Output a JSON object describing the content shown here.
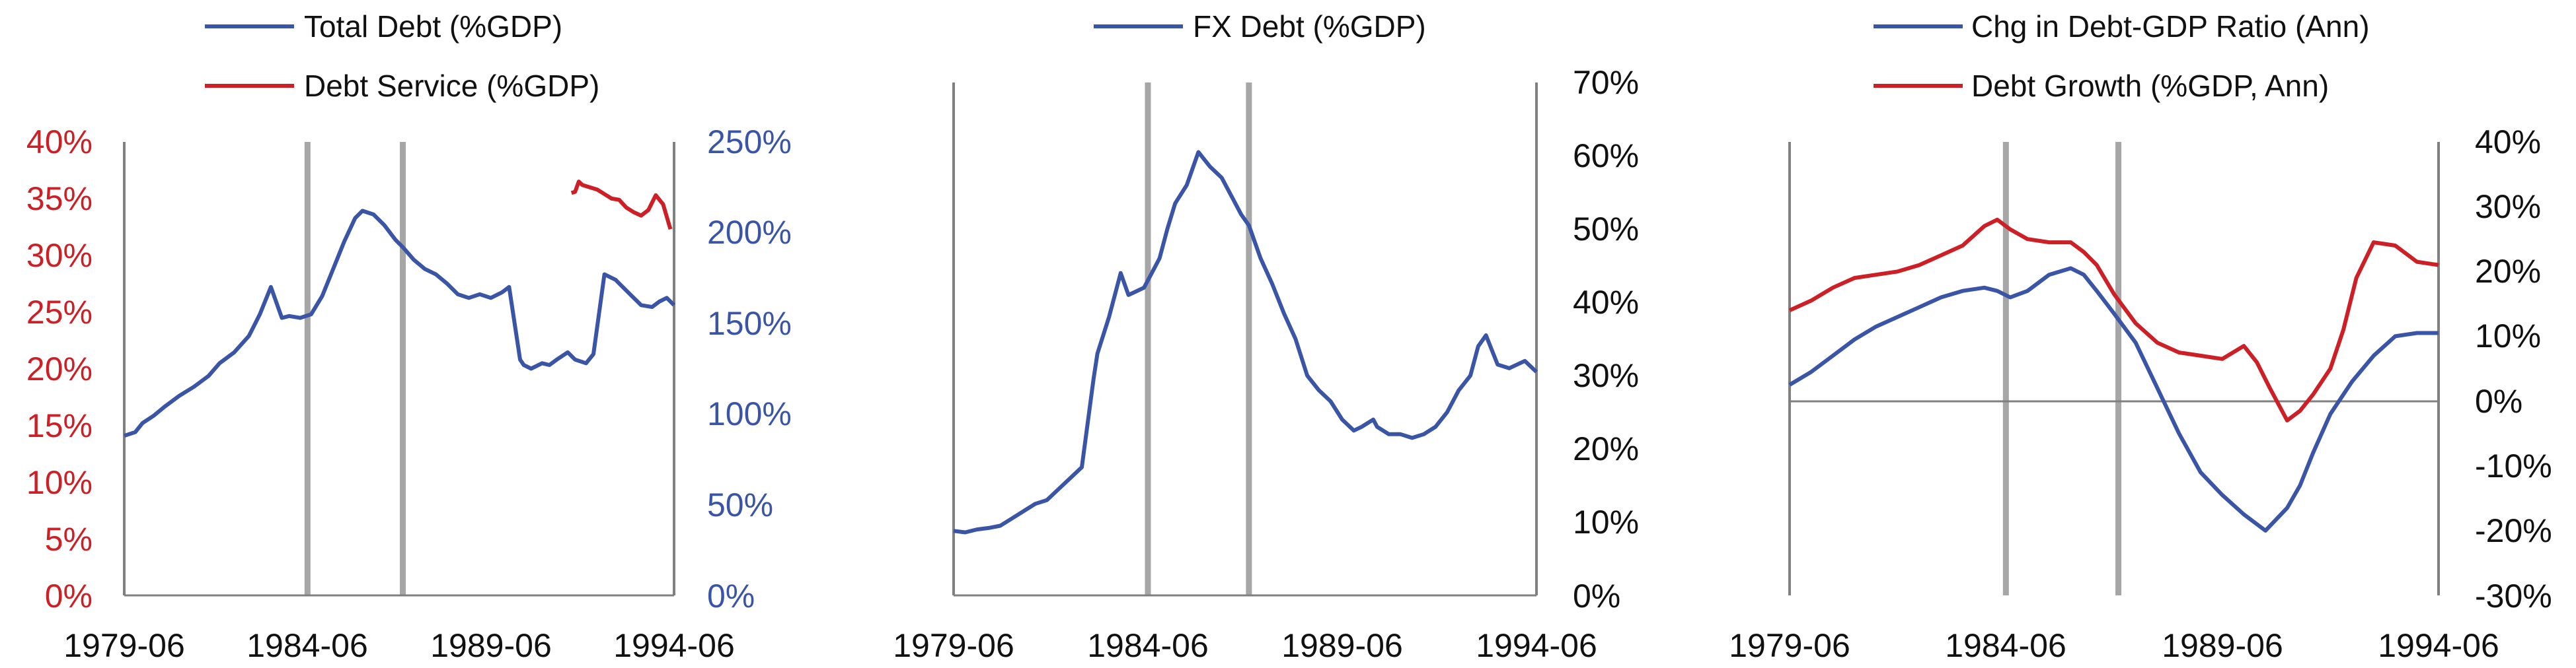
{
  "colors": {
    "blue": "#3b55a6",
    "red": "#cc2026",
    "recession": "#a6a6a6",
    "axis": "#808080"
  },
  "charts": [
    {
      "legend": [
        "Total Debt (%GDP)",
        "Debt Service (%GDP)"
      ],
      "x_ticks": [
        "1979-06",
        "1984-06",
        "1989-06",
        "1994-06"
      ],
      "left_ticks": [
        "40%",
        "35%",
        "30%",
        "25%",
        "20%",
        "15%",
        "10%",
        "5%",
        "0%"
      ],
      "right_ticks": [
        "250%",
        "200%",
        "150%",
        "100%",
        "50%",
        "0%"
      ]
    },
    {
      "legend": [
        "FX Debt (%GDP)"
      ],
      "x_ticks": [
        "1979-06",
        "1984-06",
        "1989-06",
        "1994-06"
      ],
      "right_ticks": [
        "70%",
        "60%",
        "50%",
        "40%",
        "30%",
        "20%",
        "10%",
        "0%"
      ]
    },
    {
      "legend": [
        "Chg in Debt-GDP Ratio (Ann)",
        "Debt Growth (%GDP, Ann)"
      ],
      "x_ticks": [
        "1979-06",
        "1984-06",
        "1989-06",
        "1994-06"
      ],
      "right_ticks": [
        "40%",
        "30%",
        "20%",
        "10%",
        "0%",
        "-10%",
        "-20%",
        "-30%"
      ]
    }
  ],
  "chart_data": [
    {
      "type": "line",
      "title": "",
      "x_range": [
        1979.5,
        1994.5
      ],
      "recession_bands": [
        1984.5,
        1987.1
      ],
      "y_left": {
        "range": [
          0,
          40
        ],
        "unit": "%"
      },
      "y_right": {
        "range": [
          0,
          250
        ],
        "unit": "%"
      },
      "series": [
        {
          "name": "Total Debt (%GDP)",
          "axis": "right",
          "color": "blue",
          "x": [
            1979.5,
            1979.8,
            1980.0,
            1980.3,
            1980.6,
            1981.0,
            1981.4,
            1981.8,
            1982.1,
            1982.5,
            1982.9,
            1983.2,
            1983.5,
            1983.8,
            1984.0,
            1984.3,
            1984.6,
            1984.9,
            1985.2,
            1985.5,
            1985.8,
            1986.0,
            1986.3,
            1986.6,
            1986.9,
            1987.1,
            1987.4,
            1987.7,
            1988.0,
            1988.3,
            1988.6,
            1988.9,
            1989.2,
            1989.5,
            1989.8,
            1990.0,
            1990.3,
            1990.4,
            1990.6,
            1990.9,
            1991.1,
            1991.3,
            1991.6,
            1991.8,
            1992.1,
            1992.3,
            1992.6,
            1992.9,
            1993.1,
            1993.3,
            1993.6,
            1993.9,
            1994.1,
            1994.3,
            1994.5
          ],
          "y": [
            88,
            90,
            95,
            99,
            104,
            110,
            115,
            121,
            128,
            134,
            143,
            155,
            170,
            153,
            154,
            153,
            155,
            165,
            180,
            195,
            208,
            212,
            210,
            204,
            196,
            192,
            185,
            180,
            177,
            172,
            166,
            164,
            166,
            164,
            167,
            170,
            130,
            127,
            125,
            128,
            127,
            130,
            134,
            130,
            128,
            133,
            177,
            174,
            170,
            166,
            160,
            159,
            162,
            164,
            160
          ]
        },
        {
          "name": "Debt Service (%GDP)",
          "axis": "left",
          "color": "red",
          "x": [
            1991.7,
            1991.8,
            1991.9,
            1992.0,
            1992.2,
            1992.4,
            1992.6,
            1992.8,
            1993.0,
            1993.2,
            1993.4,
            1993.6,
            1993.8,
            1994.0,
            1994.2,
            1994.4
          ],
          "y": [
            35.5,
            35.6,
            36.5,
            36.2,
            36.0,
            35.8,
            35.4,
            35.0,
            34.9,
            34.2,
            33.8,
            33.5,
            34.0,
            35.3,
            34.5,
            32.3
          ]
        }
      ]
    },
    {
      "type": "line",
      "title": "",
      "x_range": [
        1979.5,
        1994.5
      ],
      "recession_bands": [
        1984.5,
        1987.1
      ],
      "y_right": {
        "range": [
          0,
          70
        ],
        "unit": "%"
      },
      "series": [
        {
          "name": "FX Debt (%GDP)",
          "axis": "right",
          "color": "blue",
          "x": [
            1979.5,
            1979.8,
            1980.1,
            1980.4,
            1980.7,
            1981.0,
            1981.3,
            1981.6,
            1981.9,
            1982.2,
            1982.5,
            1982.8,
            1983.1,
            1983.2,
            1983.5,
            1983.8,
            1984.0,
            1984.2,
            1984.4,
            1984.6,
            1984.8,
            1985.0,
            1985.2,
            1985.5,
            1985.8,
            1986.1,
            1986.4,
            1986.7,
            1986.9,
            1987.1,
            1987.4,
            1987.7,
            1988.0,
            1988.3,
            1988.6,
            1988.9,
            1989.2,
            1989.5,
            1989.8,
            1990.0,
            1990.3,
            1990.4,
            1990.7,
            1991.0,
            1991.3,
            1991.6,
            1991.9,
            1992.2,
            1992.5,
            1992.8,
            1993.0,
            1993.2,
            1993.5,
            1993.8,
            1994.0,
            1994.2,
            1994.4,
            1994.5
          ],
          "y": [
            8.8,
            8.6,
            9.0,
            9.2,
            9.5,
            10.5,
            11.5,
            12.5,
            13.0,
            14.5,
            16.0,
            17.5,
            29.5,
            33.0,
            38.0,
            44.0,
            41.0,
            41.5,
            42.0,
            44.0,
            46.0,
            50.0,
            53.5,
            56.0,
            60.5,
            58.5,
            57.0,
            54.0,
            52.0,
            50.5,
            46.0,
            42.5,
            38.5,
            35.0,
            30.0,
            28.0,
            26.5,
            24.0,
            22.5,
            23.0,
            24.0,
            23.0,
            22.0,
            22.0,
            21.5,
            22.0,
            23.0,
            25.0,
            28.0,
            30.0,
            34.0,
            35.5,
            31.5,
            31.0,
            31.5,
            32.0,
            31.0,
            30.5
          ]
        }
      ]
    },
    {
      "type": "line",
      "title": "",
      "x_range": [
        1979.5,
        1994.5
      ],
      "recession_bands": [
        1984.5,
        1987.1
      ],
      "y_right": {
        "range": [
          -30,
          40
        ],
        "unit": "%"
      },
      "series": [
        {
          "name": "Chg in Debt-GDP Ratio (Ann)",
          "axis": "right",
          "color": "blue",
          "x": [
            1979.5,
            1980.0,
            1980.5,
            1981.0,
            1981.5,
            1982.0,
            1982.5,
            1983.0,
            1983.5,
            1984.0,
            1984.3,
            1984.6,
            1985.0,
            1985.5,
            1986.0,
            1986.3,
            1986.6,
            1987.0,
            1987.5,
            1988.0,
            1988.5,
            1989.0,
            1989.5,
            1990.0,
            1990.5,
            1991.0,
            1991.3,
            1991.6,
            1992.0,
            1992.5,
            1993.0,
            1993.5,
            1994.0,
            1994.5
          ],
          "y": [
            2.5,
            4.5,
            7.0,
            9.5,
            11.5,
            13.0,
            14.5,
            16.0,
            17.0,
            17.5,
            17.0,
            16.0,
            17.0,
            19.5,
            20.5,
            19.5,
            17.0,
            13.5,
            9.0,
            2.0,
            -5.0,
            -11.0,
            -14.5,
            -17.5,
            -20.0,
            -16.5,
            -13.0,
            -8.0,
            -2.0,
            3.0,
            7.0,
            10.0,
            10.5,
            10.5
          ]
        },
        {
          "name": "Debt Growth (%GDP, Ann)",
          "axis": "right",
          "color": "red",
          "x": [
            1979.5,
            1980.0,
            1980.5,
            1981.0,
            1981.5,
            1982.0,
            1982.5,
            1983.0,
            1983.5,
            1984.0,
            1984.3,
            1984.6,
            1985.0,
            1985.5,
            1986.0,
            1986.3,
            1986.6,
            1987.0,
            1987.5,
            1988.0,
            1988.5,
            1989.0,
            1989.5,
            1990.0,
            1990.3,
            1990.6,
            1991.0,
            1991.3,
            1991.6,
            1992.0,
            1992.3,
            1992.6,
            1993.0,
            1993.5,
            1994.0,
            1994.5
          ],
          "y": [
            14.0,
            15.5,
            17.5,
            19.0,
            19.5,
            20.0,
            21.0,
            22.5,
            24.0,
            27.0,
            28.0,
            26.5,
            25.0,
            24.5,
            24.5,
            23.0,
            21.0,
            16.5,
            12.0,
            9.0,
            7.5,
            7.0,
            6.5,
            8.5,
            6.0,
            2.0,
            -3.0,
            -1.5,
            1.0,
            5.0,
            11.0,
            19.0,
            24.5,
            24.0,
            21.5,
            21.0
          ]
        }
      ]
    }
  ]
}
